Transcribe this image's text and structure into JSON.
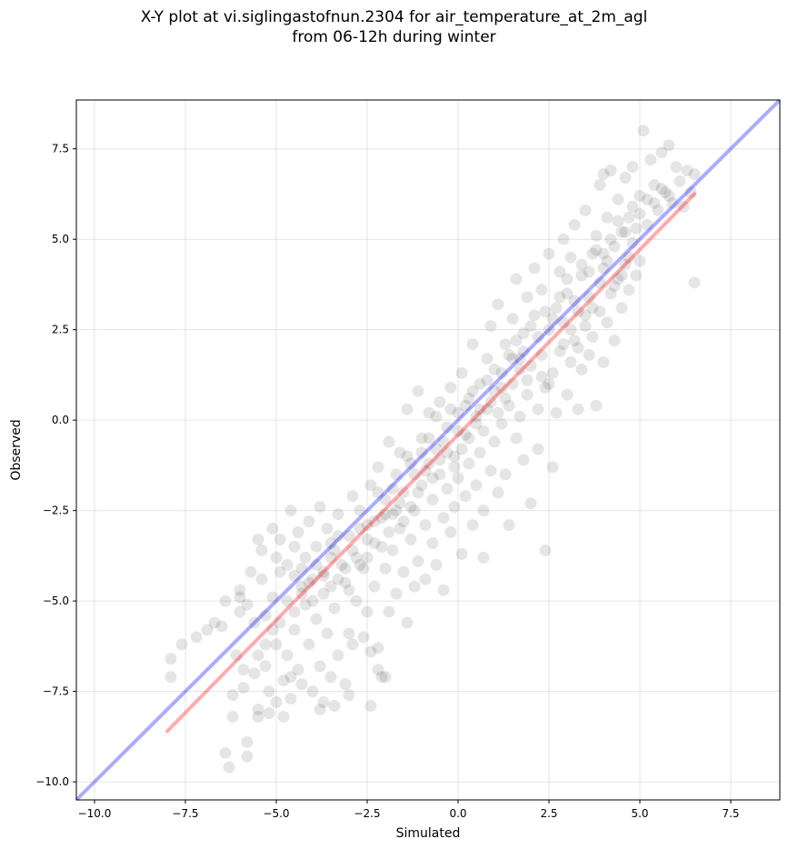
{
  "chart_data": {
    "type": "scatter",
    "title_lines": [
      "X-Y plot at vi.siglingastofnun.2304 for air_temperature_at_2m_agl",
      "from 06-12h during winter"
    ],
    "xlabel": "Simulated",
    "ylabel": "Observed",
    "xlim": [
      -10.5,
      8.85
    ],
    "ylim": [
      -10.5,
      8.85
    ],
    "xticks": [
      -10.0,
      -7.5,
      -5.0,
      -2.5,
      0.0,
      2.5,
      5.0,
      7.5
    ],
    "yticks": [
      -10.0,
      -7.5,
      -5.0,
      -2.5,
      0.0,
      2.5,
      5.0,
      7.5
    ],
    "xtick_labels": [
      "−10.0",
      "−7.5",
      "−5.0",
      "−2.5",
      "0.0",
      "2.5",
      "5.0",
      "7.5"
    ],
    "ytick_labels": [
      "−10.0",
      "−7.5",
      "−5.0",
      "−2.5",
      "0.0",
      "2.5",
      "5.0",
      "7.5"
    ],
    "grid": true,
    "point_color": "#000000",
    "point_alpha": 0.1,
    "identity_line": {
      "x": [
        -10.5,
        8.85
      ],
      "y": [
        -10.5,
        8.85
      ],
      "color": "#0000ff",
      "alpha": 0.33
    },
    "fit_line": {
      "x": [
        -8.0,
        6.5
      ],
      "y": [
        -8.6,
        6.25
      ],
      "color": "#ff0000",
      "alpha": 0.33
    },
    "points": [
      [
        -7.9,
        -6.6
      ],
      [
        -7.9,
        -7.1
      ],
      [
        -7.6,
        -6.2
      ],
      [
        -7.2,
        -6.0
      ],
      [
        -6.9,
        -5.8
      ],
      [
        -6.7,
        -5.6
      ],
      [
        -6.5,
        -5.7
      ],
      [
        -6.4,
        -5.0
      ],
      [
        -6.4,
        -9.2
      ],
      [
        -6.3,
        -9.6
      ],
      [
        -6.2,
        -7.6
      ],
      [
        -6.2,
        -8.2
      ],
      [
        -6.1,
        -6.5
      ],
      [
        -6.0,
        -4.7
      ],
      [
        -6.0,
        -5.3
      ],
      [
        -5.9,
        -6.9
      ],
      [
        -5.9,
        -7.4
      ],
      [
        -5.8,
        -8.9
      ],
      [
        -5.8,
        -9.3
      ],
      [
        -5.7,
        -4.2
      ],
      [
        -5.6,
        -5.6
      ],
      [
        -5.6,
        -7.0
      ],
      [
        -5.5,
        -8.0
      ],
      [
        -5.5,
        -8.2
      ],
      [
        -5.4,
        -3.6
      ],
      [
        -5.4,
        -4.4
      ],
      [
        -5.3,
        -5.4
      ],
      [
        -5.3,
        -6.8
      ],
      [
        -5.2,
        -7.5
      ],
      [
        -5.2,
        -8.1
      ],
      [
        -5.1,
        -3.0
      ],
      [
        -5.1,
        -4.9
      ],
      [
        -5.0,
        -6.2
      ],
      [
        -5.0,
        -7.8
      ],
      [
        -4.9,
        -3.3
      ],
      [
        -4.9,
        -5.6
      ],
      [
        -4.8,
        -7.2
      ],
      [
        -4.8,
        -8.2
      ],
      [
        -4.7,
        -4.0
      ],
      [
        -4.7,
        -6.5
      ],
      [
        -4.6,
        -2.5
      ],
      [
        -4.6,
        -7.7
      ],
      [
        -4.5,
        -4.3
      ],
      [
        -4.5,
        -5.8
      ],
      [
        -4.4,
        -3.1
      ],
      [
        -4.4,
        -6.9
      ],
      [
        -4.3,
        -4.6
      ],
      [
        -4.3,
        -7.3
      ],
      [
        -4.2,
        -3.8
      ],
      [
        -4.2,
        -5.1
      ],
      [
        -4.1,
        -2.8
      ],
      [
        -4.1,
        -6.2
      ],
      [
        -4.0,
        -4.4
      ],
      [
        -4.0,
        -7.5
      ],
      [
        -3.9,
        -3.5
      ],
      [
        -3.9,
        -5.5
      ],
      [
        -3.8,
        -2.4
      ],
      [
        -3.8,
        -6.8
      ],
      [
        -3.7,
        -4.2
      ],
      [
        -3.7,
        -7.8
      ],
      [
        -3.6,
        -3.0
      ],
      [
        -3.6,
        -5.9
      ],
      [
        -3.5,
        -4.6
      ],
      [
        -3.5,
        -7.1
      ],
      [
        -3.4,
        -3.6
      ],
      [
        -3.4,
        -5.2
      ],
      [
        -3.3,
        -2.6
      ],
      [
        -3.3,
        -6.5
      ],
      [
        -3.2,
        -4.0
      ],
      [
        -3.1,
        -4.5
      ],
      [
        -3.1,
        -7.3
      ],
      [
        -3.0,
        -3.2
      ],
      [
        -3.0,
        -5.9
      ],
      [
        -2.9,
        -2.1
      ],
      [
        -2.9,
        -6.2
      ],
      [
        -2.8,
        -3.8
      ],
      [
        -2.8,
        -5.0
      ],
      [
        -2.7,
        -2.5
      ],
      [
        -2.6,
        -4.1
      ],
      [
        -2.6,
        -6.0
      ],
      [
        -2.5,
        -3.3
      ],
      [
        -2.5,
        -5.3
      ],
      [
        -2.4,
        -1.8
      ],
      [
        -2.4,
        -7.9
      ],
      [
        -2.3,
        -2.8
      ],
      [
        -2.3,
        -4.6
      ],
      [
        -2.2,
        -1.3
      ],
      [
        -2.2,
        -6.3
      ],
      [
        -2.1,
        -3.5
      ],
      [
        -2.1,
        -7.1
      ],
      [
        -2.0,
        -2.2
      ],
      [
        -2.0,
        -4.1
      ],
      [
        -1.9,
        -0.6
      ],
      [
        -1.9,
        -5.3
      ],
      [
        -1.8,
        -2.6
      ],
      [
        -1.8,
        -3.6
      ],
      [
        -1.7,
        -1.5
      ],
      [
        -1.7,
        -4.8
      ],
      [
        -1.6,
        -0.9
      ],
      [
        -1.6,
        -3.0
      ],
      [
        -1.5,
        -2.0
      ],
      [
        -1.5,
        -4.2
      ],
      [
        -1.4,
        0.3
      ],
      [
        -1.4,
        -5.6
      ],
      [
        -1.3,
        -1.2
      ],
      [
        -1.3,
        -3.3
      ],
      [
        -1.2,
        -2.5
      ],
      [
        -1.2,
        -4.6
      ],
      [
        -1.1,
        0.8
      ],
      [
        -1.1,
        -3.9
      ],
      [
        -1.0,
        -0.5
      ],
      [
        -1.0,
        -1.8
      ],
      [
        -0.9,
        -2.9
      ],
      [
        -0.9,
        -4.4
      ],
      [
        -0.8,
        0.2
      ],
      [
        -0.8,
        -1.2
      ],
      [
        -0.7,
        -2.2
      ],
      [
        -0.7,
        -3.4
      ],
      [
        -0.6,
        -0.8
      ],
      [
        -0.6,
        -4.0
      ],
      [
        -0.5,
        0.5
      ],
      [
        -0.5,
        -1.5
      ],
      [
        -0.4,
        -2.7
      ],
      [
        -0.4,
        -4.7
      ],
      [
        -0.3,
        -0.2
      ],
      [
        -0.3,
        -1.9
      ],
      [
        -0.2,
        -3.1
      ],
      [
        -0.2,
        0.9
      ],
      [
        -0.1,
        -1.0
      ],
      [
        -0.1,
        -2.4
      ],
      [
        0.0,
        0.2
      ],
      [
        0.0,
        -1.6
      ],
      [
        0.1,
        -3.7
      ],
      [
        0.1,
        1.3
      ],
      [
        0.2,
        -0.4
      ],
      [
        0.2,
        -2.1
      ],
      [
        0.3,
        0.6
      ],
      [
        0.3,
        -1.2
      ],
      [
        0.4,
        -2.9
      ],
      [
        0.4,
        2.1
      ],
      [
        0.5,
        -0.1
      ],
      [
        0.5,
        -1.8
      ],
      [
        0.6,
        1.0
      ],
      [
        0.6,
        -0.9
      ],
      [
        0.7,
        -2.5
      ],
      [
        0.7,
        -3.8
      ],
      [
        0.8,
        1.7
      ],
      [
        0.8,
        0.3
      ],
      [
        0.9,
        -1.4
      ],
      [
        0.9,
        2.6
      ],
      [
        1.0,
        0.8
      ],
      [
        1.0,
        -0.6
      ],
      [
        1.1,
        -2.0
      ],
      [
        1.1,
        3.2
      ],
      [
        1.2,
        1.3
      ],
      [
        1.2,
        -0.1
      ],
      [
        1.3,
        -1.5
      ],
      [
        1.3,
        2.1
      ],
      [
        1.4,
        0.4
      ],
      [
        1.4,
        -2.9
      ],
      [
        1.5,
        2.8
      ],
      [
        1.5,
        1.0
      ],
      [
        1.6,
        -0.5
      ],
      [
        1.6,
        3.9
      ],
      [
        1.7,
        1.7
      ],
      [
        1.7,
        0.1
      ],
      [
        1.8,
        -1.1
      ],
      [
        1.8,
        2.4
      ],
      [
        1.9,
        3.4
      ],
      [
        1.9,
        0.7
      ],
      [
        2.0,
        -2.3
      ],
      [
        2.0,
        1.5
      ],
      [
        2.1,
        4.2
      ],
      [
        2.1,
        2.9
      ],
      [
        2.2,
        0.3
      ],
      [
        2.2,
        -0.8
      ],
      [
        2.3,
        1.8
      ],
      [
        2.3,
        3.6
      ],
      [
        2.4,
        -3.6
      ],
      [
        2.4,
        0.9
      ],
      [
        2.5,
        2.5
      ],
      [
        2.5,
        4.6
      ],
      [
        2.6,
        1.3
      ],
      [
        2.6,
        -1.3
      ],
      [
        2.7,
        3.1
      ],
      [
        2.7,
        0.2
      ],
      [
        2.8,
        4.1
      ],
      [
        2.8,
        1.9
      ],
      [
        2.9,
        2.7
      ],
      [
        2.9,
        5.0
      ],
      [
        3.0,
        0.7
      ],
      [
        3.0,
        3.5
      ],
      [
        3.1,
        1.6
      ],
      [
        3.1,
        4.5
      ],
      [
        3.2,
        2.2
      ],
      [
        3.2,
        5.4
      ],
      [
        3.3,
        0.3
      ],
      [
        3.3,
        3.0
      ],
      [
        3.4,
        1.4
      ],
      [
        3.4,
        4.0
      ],
      [
        3.5,
        2.6
      ],
      [
        3.5,
        5.8
      ],
      [
        3.6,
        3.4
      ],
      [
        3.6,
        1.8
      ],
      [
        3.7,
        4.6
      ],
      [
        3.7,
        2.3
      ],
      [
        3.8,
        0.4
      ],
      [
        3.8,
        5.1
      ],
      [
        3.9,
        3.0
      ],
      [
        3.9,
        6.5
      ],
      [
        4.0,
        4.2
      ],
      [
        4.0,
        1.6
      ],
      [
        4.1,
        2.7
      ],
      [
        4.1,
        5.6
      ],
      [
        4.2,
        3.5
      ],
      [
        4.2,
        6.9
      ],
      [
        4.3,
        4.8
      ],
      [
        4.3,
        2.2
      ],
      [
        4.4,
        3.9
      ],
      [
        4.4,
        6.1
      ],
      [
        4.5,
        5.2
      ],
      [
        4.5,
        3.1
      ],
      [
        4.6,
        4.3
      ],
      [
        4.6,
        6.7
      ],
      [
        4.7,
        5.6
      ],
      [
        4.7,
        3.6
      ],
      [
        4.8,
        4.9
      ],
      [
        4.8,
        7.0
      ],
      [
        4.9,
        4.0
      ],
      [
        5.0,
        6.2
      ],
      [
        5.0,
        4.4
      ],
      [
        5.1,
        8.0
      ],
      [
        5.2,
        5.4
      ],
      [
        5.3,
        7.2
      ],
      [
        5.4,
        6.5
      ],
      [
        5.5,
        5.8
      ],
      [
        5.6,
        7.4
      ],
      [
        5.7,
        6.3
      ],
      [
        5.8,
        7.6
      ],
      [
        5.9,
        6.0
      ],
      [
        6.0,
        7.0
      ],
      [
        6.1,
        6.6
      ],
      [
        6.2,
        5.9
      ],
      [
        6.3,
        6.9
      ],
      [
        6.4,
        6.3
      ],
      [
        6.5,
        6.8
      ],
      [
        6.5,
        3.8
      ],
      [
        4.0,
        6.8
      ],
      [
        -6.0,
        -4.9
      ],
      [
        -5.5,
        -3.3
      ],
      [
        -5.0,
        -3.8
      ],
      [
        -4.5,
        -3.5
      ],
      [
        -4.3,
        -4.1
      ],
      [
        -4.0,
        -5.0
      ],
      [
        -3.7,
        -4.8
      ],
      [
        -3.5,
        -3.8
      ],
      [
        -3.3,
        -4.4
      ],
      [
        -3.0,
        -4.7
      ],
      [
        -2.7,
        -3.0
      ],
      [
        -2.5,
        -2.9
      ],
      [
        -2.2,
        -2.0
      ],
      [
        -2.0,
        -2.6
      ],
      [
        -1.8,
        -1.9
      ],
      [
        -1.6,
        -2.3
      ],
      [
        -1.4,
        -1.0
      ],
      [
        -1.2,
        -1.5
      ],
      [
        -1.0,
        -0.9
      ],
      [
        -0.8,
        -0.5
      ],
      [
        -0.6,
        0.1
      ],
      [
        -0.4,
        -0.6
      ],
      [
        -0.2,
        0.3
      ],
      [
        0.0,
        -0.3
      ],
      [
        0.2,
        0.4
      ],
      [
        0.4,
        0.8
      ],
      [
        0.6,
        0.3
      ],
      [
        0.8,
        1.1
      ],
      [
        1.0,
        1.4
      ],
      [
        1.2,
        0.9
      ],
      [
        1.4,
        1.8
      ],
      [
        1.6,
        2.2
      ],
      [
        1.8,
        1.9
      ],
      [
        2.0,
        2.6
      ],
      [
        2.2,
        2.3
      ],
      [
        2.4,
        3.0
      ],
      [
        2.6,
        2.8
      ],
      [
        2.8,
        3.4
      ],
      [
        3.0,
        3.9
      ],
      [
        3.2,
        3.3
      ],
      [
        3.4,
        4.3
      ],
      [
        3.6,
        4.1
      ],
      [
        3.8,
        4.7
      ],
      [
        4.0,
        4.6
      ],
      [
        4.2,
        5.0
      ],
      [
        4.4,
        5.5
      ],
      [
        4.6,
        5.2
      ],
      [
        4.8,
        5.9
      ],
      [
        5.0,
        5.7
      ],
      [
        5.2,
        6.1
      ],
      [
        5.4,
        6.0
      ],
      [
        5.6,
        6.4
      ],
      [
        5.8,
        6.2
      ],
      [
        2.3,
        1.2
      ],
      [
        2.5,
        1.0
      ],
      [
        2.9,
        2.1
      ],
      [
        3.1,
        2.5
      ],
      [
        3.3,
        2.0
      ],
      [
        3.5,
        2.9
      ],
      [
        3.7,
        3.1
      ],
      [
        3.9,
        3.8
      ],
      [
        4.1,
        4.4
      ],
      [
        4.3,
        3.7
      ],
      [
        4.5,
        4.0
      ],
      [
        4.7,
        4.5
      ],
      [
        4.9,
        5.3
      ],
      [
        1.9,
        1.1
      ],
      [
        1.7,
        1.4
      ],
      [
        1.5,
        1.7
      ],
      [
        1.3,
        0.6
      ],
      [
        1.1,
        0.2
      ],
      [
        0.9,
        0.5
      ],
      [
        0.7,
        -0.3
      ],
      [
        0.5,
        0.1
      ],
      [
        0.3,
        -0.5
      ],
      [
        0.1,
        -0.8
      ],
      [
        -0.1,
        -1.3
      ],
      [
        -0.3,
        -0.9
      ],
      [
        -0.5,
        -1.1
      ],
      [
        -0.7,
        -1.6
      ],
      [
        -0.9,
        -1.4
      ],
      [
        -1.1,
        -2.0
      ],
      [
        -1.3,
        -2.4
      ],
      [
        -1.5,
        -2.8
      ],
      [
        -1.7,
        -2.5
      ],
      [
        -1.9,
        -3.1
      ],
      [
        -2.1,
        -2.7
      ],
      [
        -2.3,
        -3.4
      ],
      [
        -2.5,
        -3.8
      ],
      [
        -2.7,
        -4.0
      ],
      [
        -2.9,
        -3.6
      ],
      [
        -3.1,
        -4.1
      ],
      [
        -3.3,
        -3.2
      ],
      [
        -3.5,
        -3.4
      ],
      [
        -3.7,
        -4.3
      ],
      [
        -3.9,
        -4.0
      ],
      [
        -4.1,
        -4.5
      ],
      [
        -4.3,
        -4.8
      ],
      [
        -4.5,
        -5.3
      ],
      [
        -4.7,
        -5.0
      ],
      [
        -4.9,
        -4.2
      ],
      [
        -5.1,
        -5.8
      ],
      [
        -5.3,
        -6.2
      ],
      [
        -5.5,
        -6.5
      ],
      [
        -2.4,
        -6.4
      ],
      [
        -2.2,
        -6.9
      ],
      [
        -2.0,
        -7.1
      ],
      [
        -3.0,
        -7.6
      ],
      [
        -3.4,
        -7.9
      ],
      [
        -3.8,
        -8.0
      ],
      [
        -4.6,
        -7.1
      ],
      [
        -5.8,
        -5.1
      ]
    ]
  }
}
